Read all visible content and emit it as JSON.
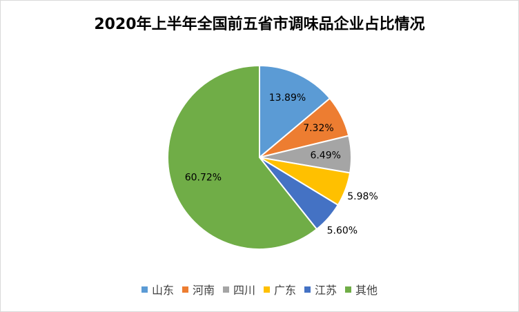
{
  "chart_data": {
    "type": "pie",
    "title": "2020年上半年全国前五省市调味品企业占比情况",
    "legend_position": "bottom",
    "slices": [
      {
        "name": "山东",
        "value": 13.89,
        "label": "13.89%",
        "color": "#5b9bd5"
      },
      {
        "name": "河南",
        "value": 7.32,
        "label": "7.32%",
        "color": "#ed7d31"
      },
      {
        "name": "四川",
        "value": 6.49,
        "label": "6.49%",
        "color": "#a5a5a5"
      },
      {
        "name": "广东",
        "value": 5.98,
        "label": "5.98%",
        "color": "#ffc000"
      },
      {
        "name": "江苏",
        "value": 5.6,
        "label": "5.60%",
        "color": "#4472c4"
      },
      {
        "name": "其他",
        "value": 60.72,
        "label": "60.72%",
        "color": "#70ad47"
      }
    ]
  }
}
